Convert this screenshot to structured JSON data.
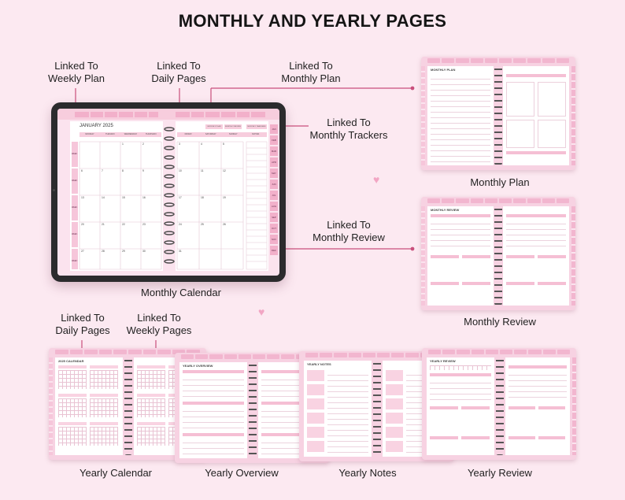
{
  "title": "MONTHLY AND YEARLY PAGES",
  "callouts": {
    "weekly_plan": [
      "Linked To",
      "Weekly Plan"
    ],
    "daily_pages_top": [
      "Linked To",
      "Daily Pages"
    ],
    "monthly_plan_link": [
      "Linked To",
      "Monthly Plan"
    ],
    "monthly_trackers": [
      "Linked To",
      "Monthly Trackers"
    ],
    "monthly_review_link": [
      "Linked To",
      "Monthly Review"
    ],
    "daily_pages_bottom": [
      "Linked To",
      "Daily Pages"
    ],
    "weekly_pages": [
      "Linked To",
      "Weekly Pages"
    ]
  },
  "captions": {
    "monthly_calendar": "Monthly Calendar",
    "monthly_plan": "Monthly Plan",
    "monthly_review": "Monthly Review",
    "yearly_calendar": "Yearly Calendar",
    "yearly_overview": "Yearly Overview",
    "yearly_notes": "Yearly Notes",
    "yearly_review": "Yearly Review"
  },
  "tablet": {
    "month_title": "JANUARY 2025",
    "weekdays_left": [
      "MONDAY",
      "TUESDAY",
      "WEDNESDAY",
      "THURSDAY"
    ],
    "weekdays_right": [
      "FRIDAY",
      "SATURDAY",
      "SUNDAY",
      "NOTES"
    ],
    "top_links": [
      "MONTHLY PLAN",
      "MONTHLY REVIEW",
      "MONTHLY TRACKERS"
    ],
    "side_months": [
      "JAN",
      "FEB",
      "MAR",
      "APR",
      "MAY",
      "JUN",
      "JUL",
      "AUG",
      "SEP",
      "OCT",
      "NOV",
      "DEC"
    ],
    "week_labels": [
      "WEEK 1",
      "WEEK 2",
      "WEEK 3",
      "WEEK 4",
      "WEEK 5"
    ],
    "days": [
      "",
      "",
      "1",
      "2",
      "3",
      "4",
      "5",
      "6",
      "7",
      "8",
      "9",
      "10",
      "11",
      "12",
      "13",
      "14",
      "15",
      "16",
      "17",
      "18",
      "19",
      "20",
      "21",
      "22",
      "23",
      "24",
      "25",
      "26",
      "27",
      "28",
      "29",
      "30",
      "31",
      "",
      ""
    ]
  },
  "thumbs": {
    "monthly_plan_title": "MONTHLY PLAN",
    "monthly_review_title": "MONTHLY REVIEW",
    "yearly_calendar_title": "2025 CALENDAR",
    "yearly_overview_title": "YEARLY OVERVIEW",
    "yearly_notes_title": "YEARLY NOTES",
    "yearly_review_title": "YEARLY REVIEW"
  },
  "colors": {
    "background": "#fce9f1",
    "accent": "#c94f7c",
    "page_frame": "#f7d2e2",
    "tab_pink": "#f2b6cf"
  }
}
